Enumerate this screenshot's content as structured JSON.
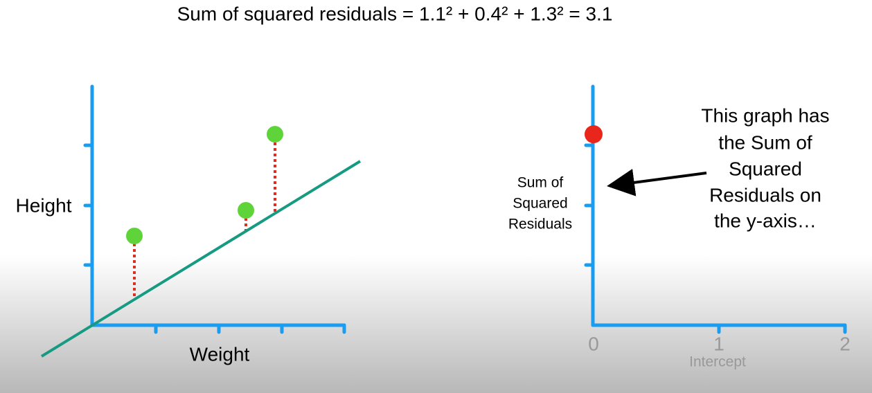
{
  "title": "Sum of squared residuals = 1.1² + 0.4² + 1.3² = 3.1",
  "left_chart": {
    "y_label": "Height",
    "x_label": "Weight"
  },
  "right_chart": {
    "y_label": [
      "Sum of",
      "Squared",
      "Residuals"
    ],
    "x_label": "Intercept",
    "xticks": [
      0,
      1,
      2
    ]
  },
  "annotation": [
    "This graph has",
    "the Sum of",
    "Squared",
    "Residuals on",
    "the y-axis…"
  ]
}
